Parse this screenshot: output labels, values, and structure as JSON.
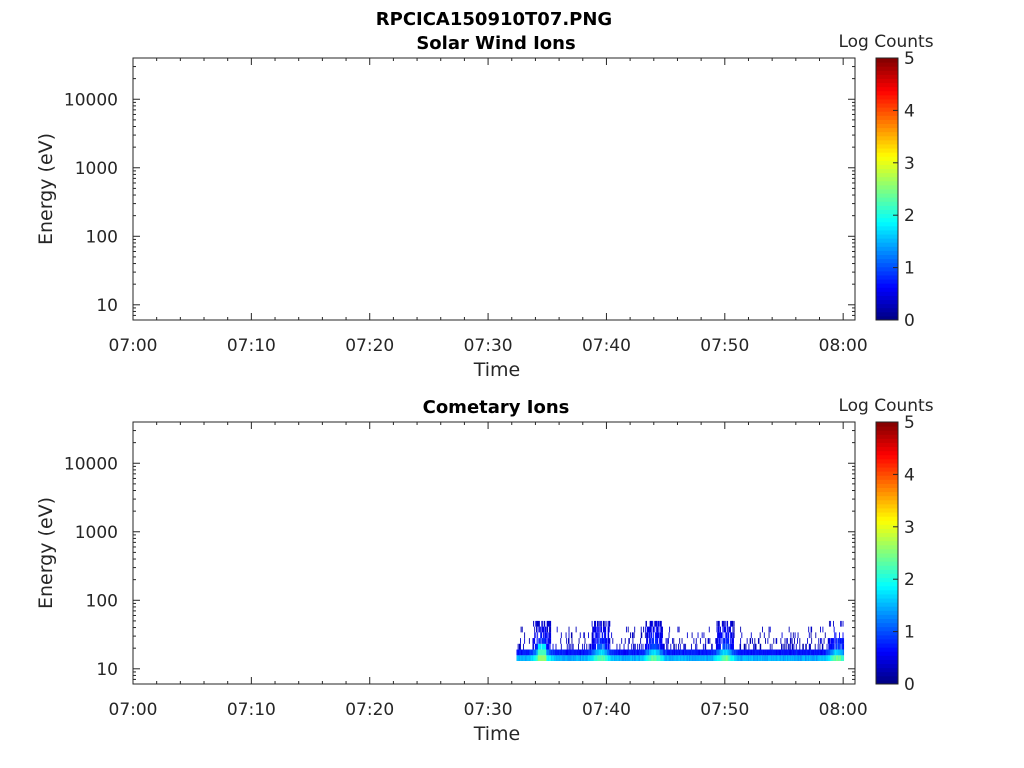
{
  "figure": {
    "title": "RPCICA150910T07.PNG"
  },
  "chart_data": [
    {
      "type": "heatmap",
      "title": "Solar Wind Ions",
      "xlabel": "Time",
      "ylabel": "Energy (eV)",
      "x_ticks": [
        "07:00",
        "07:10",
        "07:20",
        "07:30",
        "07:40",
        "07:50",
        "08:00"
      ],
      "x_range_minutes": [
        0,
        61
      ],
      "y_scale": "log",
      "y_ticks": [
        "10",
        "100",
        "1000",
        "10000"
      ],
      "y_range": [
        6,
        40000
      ],
      "colorbar": {
        "label": "Log Counts",
        "range": [
          0,
          5
        ],
        "ticks": [
          "0",
          "1",
          "2",
          "3",
          "4",
          "5"
        ],
        "colormap": "jet"
      },
      "data": []
    },
    {
      "type": "heatmap",
      "title": "Cometary Ions",
      "xlabel": "Time",
      "ylabel": "Energy (eV)",
      "x_ticks": [
        "07:00",
        "07:10",
        "07:20",
        "07:30",
        "07:40",
        "07:50",
        "08:00"
      ],
      "x_range_minutes": [
        0,
        61
      ],
      "y_scale": "log",
      "y_ticks": [
        "10",
        "100",
        "1000",
        "10000"
      ],
      "y_range": [
        6,
        40000
      ],
      "colorbar": {
        "label": "Log Counts",
        "range": [
          0,
          5
        ],
        "ticks": [
          "0",
          "1",
          "2",
          "3",
          "4",
          "5"
        ],
        "colormap": "jet"
      },
      "data": {
        "time_range_minutes": [
          32.4,
          60
        ],
        "energy_range_eV": [
          13,
          50
        ],
        "peaks": [
          {
            "time": "07:34:30",
            "max_energy_eV": 50,
            "log_counts": 2.6
          },
          {
            "time": "07:39:30",
            "max_energy_eV": 48,
            "log_counts": 1.9
          },
          {
            "time": "07:44:00",
            "max_energy_eV": 50,
            "log_counts": 1.7
          },
          {
            "time": "07:50:00",
            "max_energy_eV": 50,
            "log_counts": 1.8
          },
          {
            "time": "07:59:30",
            "max_energy_eV": 28,
            "log_counts": 1.6
          }
        ]
      }
    }
  ]
}
